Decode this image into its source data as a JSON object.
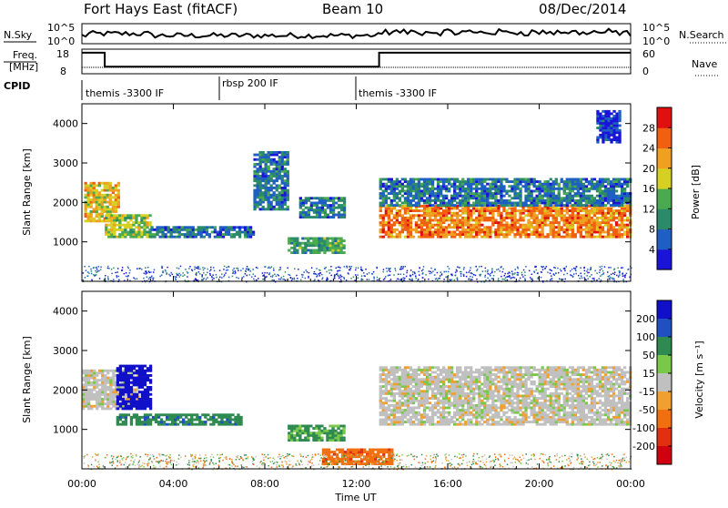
{
  "header": {
    "station": "Fort Hays East (fitACF)",
    "beam": "Beam 10",
    "date": "08/Dec/2014"
  },
  "noise_panel": {
    "left_label": "N.Sky",
    "right_label": "N.Search",
    "left_ticks": [
      "10^5",
      "10^0"
    ],
    "right_ticks": [
      "10^5",
      "10^0"
    ]
  },
  "freq_panel": {
    "left_label_1": "Freq.",
    "left_label_2": "[MHz]",
    "right_label": "Nave",
    "left_ticks": [
      "18",
      "8"
    ],
    "right_ticks": [
      "60",
      "0"
    ]
  },
  "cpid": {
    "label": "CPID",
    "segments": [
      {
        "name": "themis -3300 IF",
        "start": 0,
        "end": 6
      },
      {
        "name": "rbsp 200 IF",
        "start": 6,
        "end": 12
      },
      {
        "name": "themis -3300 IF",
        "start": 12,
        "end": 24
      }
    ]
  },
  "power_panel": {
    "ylabel": "Slant Range [km]",
    "ylim": [
      0,
      4500
    ],
    "yticks": [
      "1000",
      "2000",
      "3000",
      "4000"
    ],
    "colorbar_label": "Power [dB]",
    "colorbar_ticks": [
      "4",
      "8",
      "12",
      "16",
      "20",
      "24",
      "28"
    ],
    "colors": [
      "#1a14d8",
      "#1f5fc4",
      "#2a8a6a",
      "#4aaa50",
      "#d7d024",
      "#f0a020",
      "#f06010",
      "#e01010"
    ]
  },
  "velocity_panel": {
    "ylabel": "Slant Range [km]",
    "ylim": [
      0,
      4500
    ],
    "yticks": [
      "1000",
      "2000",
      "3000",
      "4000"
    ],
    "colorbar_label": "Velocity [m s⁻¹]",
    "colorbar_ticks": [
      "200",
      "100",
      "50",
      "15",
      "-15",
      "-50",
      "-100",
      "-200"
    ],
    "colors": [
      "#1010c8",
      "#2050c0",
      "#2e8a50",
      "#7ac84a",
      "#c0c0c0",
      "#f0a030",
      "#f07010",
      "#e03010",
      "#d00010"
    ]
  },
  "x_axis": {
    "label": "Time UT",
    "ticks": [
      "00:00",
      "04:00",
      "08:00",
      "12:00",
      "16:00",
      "20:00",
      "00:00"
    ]
  },
  "chart_data": {
    "type": "heatmap",
    "title": "Fort Hays East (fitACF)",
    "xlabel": "Time UT",
    "ylabel": "Slant Range [km]",
    "xlim": [
      0,
      24
    ],
    "ylim": [
      0,
      4500
    ],
    "frequency_mhz": [
      {
        "start": 0.0,
        "end": 1.0,
        "value": 18
      },
      {
        "start": 1.0,
        "end": 13.0,
        "value": 10
      },
      {
        "start": 13.0,
        "end": 24.0,
        "value": 18
      }
    ],
    "power_echo_regions": [
      {
        "t0": 0.1,
        "t1": 1.6,
        "r0": 1500,
        "r1": 2500,
        "dB": 20
      },
      {
        "t0": 1.0,
        "t1": 3.0,
        "r0": 1100,
        "r1": 1700,
        "dB": 16
      },
      {
        "t0": 3.0,
        "t1": 7.5,
        "r0": 1100,
        "r1": 1400,
        "dB": 8
      },
      {
        "t0": 7.5,
        "t1": 9.0,
        "r0": 1800,
        "r1": 3300,
        "dB": 8
      },
      {
        "t0": 9.0,
        "t1": 11.5,
        "r0": 700,
        "r1": 1100,
        "dB": 12
      },
      {
        "t0": 9.5,
        "t1": 11.5,
        "r0": 1600,
        "r1": 2100,
        "dB": 8
      },
      {
        "t0": 13.0,
        "t1": 24.0,
        "r0": 1100,
        "r1": 1900,
        "dB": 24
      },
      {
        "t0": 13.0,
        "t1": 24.0,
        "r0": 1900,
        "r1": 2600,
        "dB": 8
      },
      {
        "t0": 22.5,
        "t1": 23.5,
        "r0": 3500,
        "r1": 4300,
        "dB": 4
      }
    ],
    "velocity_echo_regions": [
      {
        "t0": 0.0,
        "t1": 2.5,
        "r0": 1500,
        "r1": 2500,
        "vel": 0
      },
      {
        "t0": 1.5,
        "t1": 3.0,
        "r0": 1500,
        "r1": 2600,
        "vel": 200
      },
      {
        "t0": 1.5,
        "t1": 7.0,
        "r0": 1100,
        "r1": 1400,
        "vel": 60
      },
      {
        "t0": 9.0,
        "t1": 11.5,
        "r0": 700,
        "r1": 1100,
        "vel": 40
      },
      {
        "t0": 13.0,
        "t1": 24.0,
        "r0": 1100,
        "r1": 2600,
        "vel": 0
      },
      {
        "t0": 10.5,
        "t1": 13.5,
        "r0": 100,
        "r1": 500,
        "vel": -60
      }
    ]
  }
}
